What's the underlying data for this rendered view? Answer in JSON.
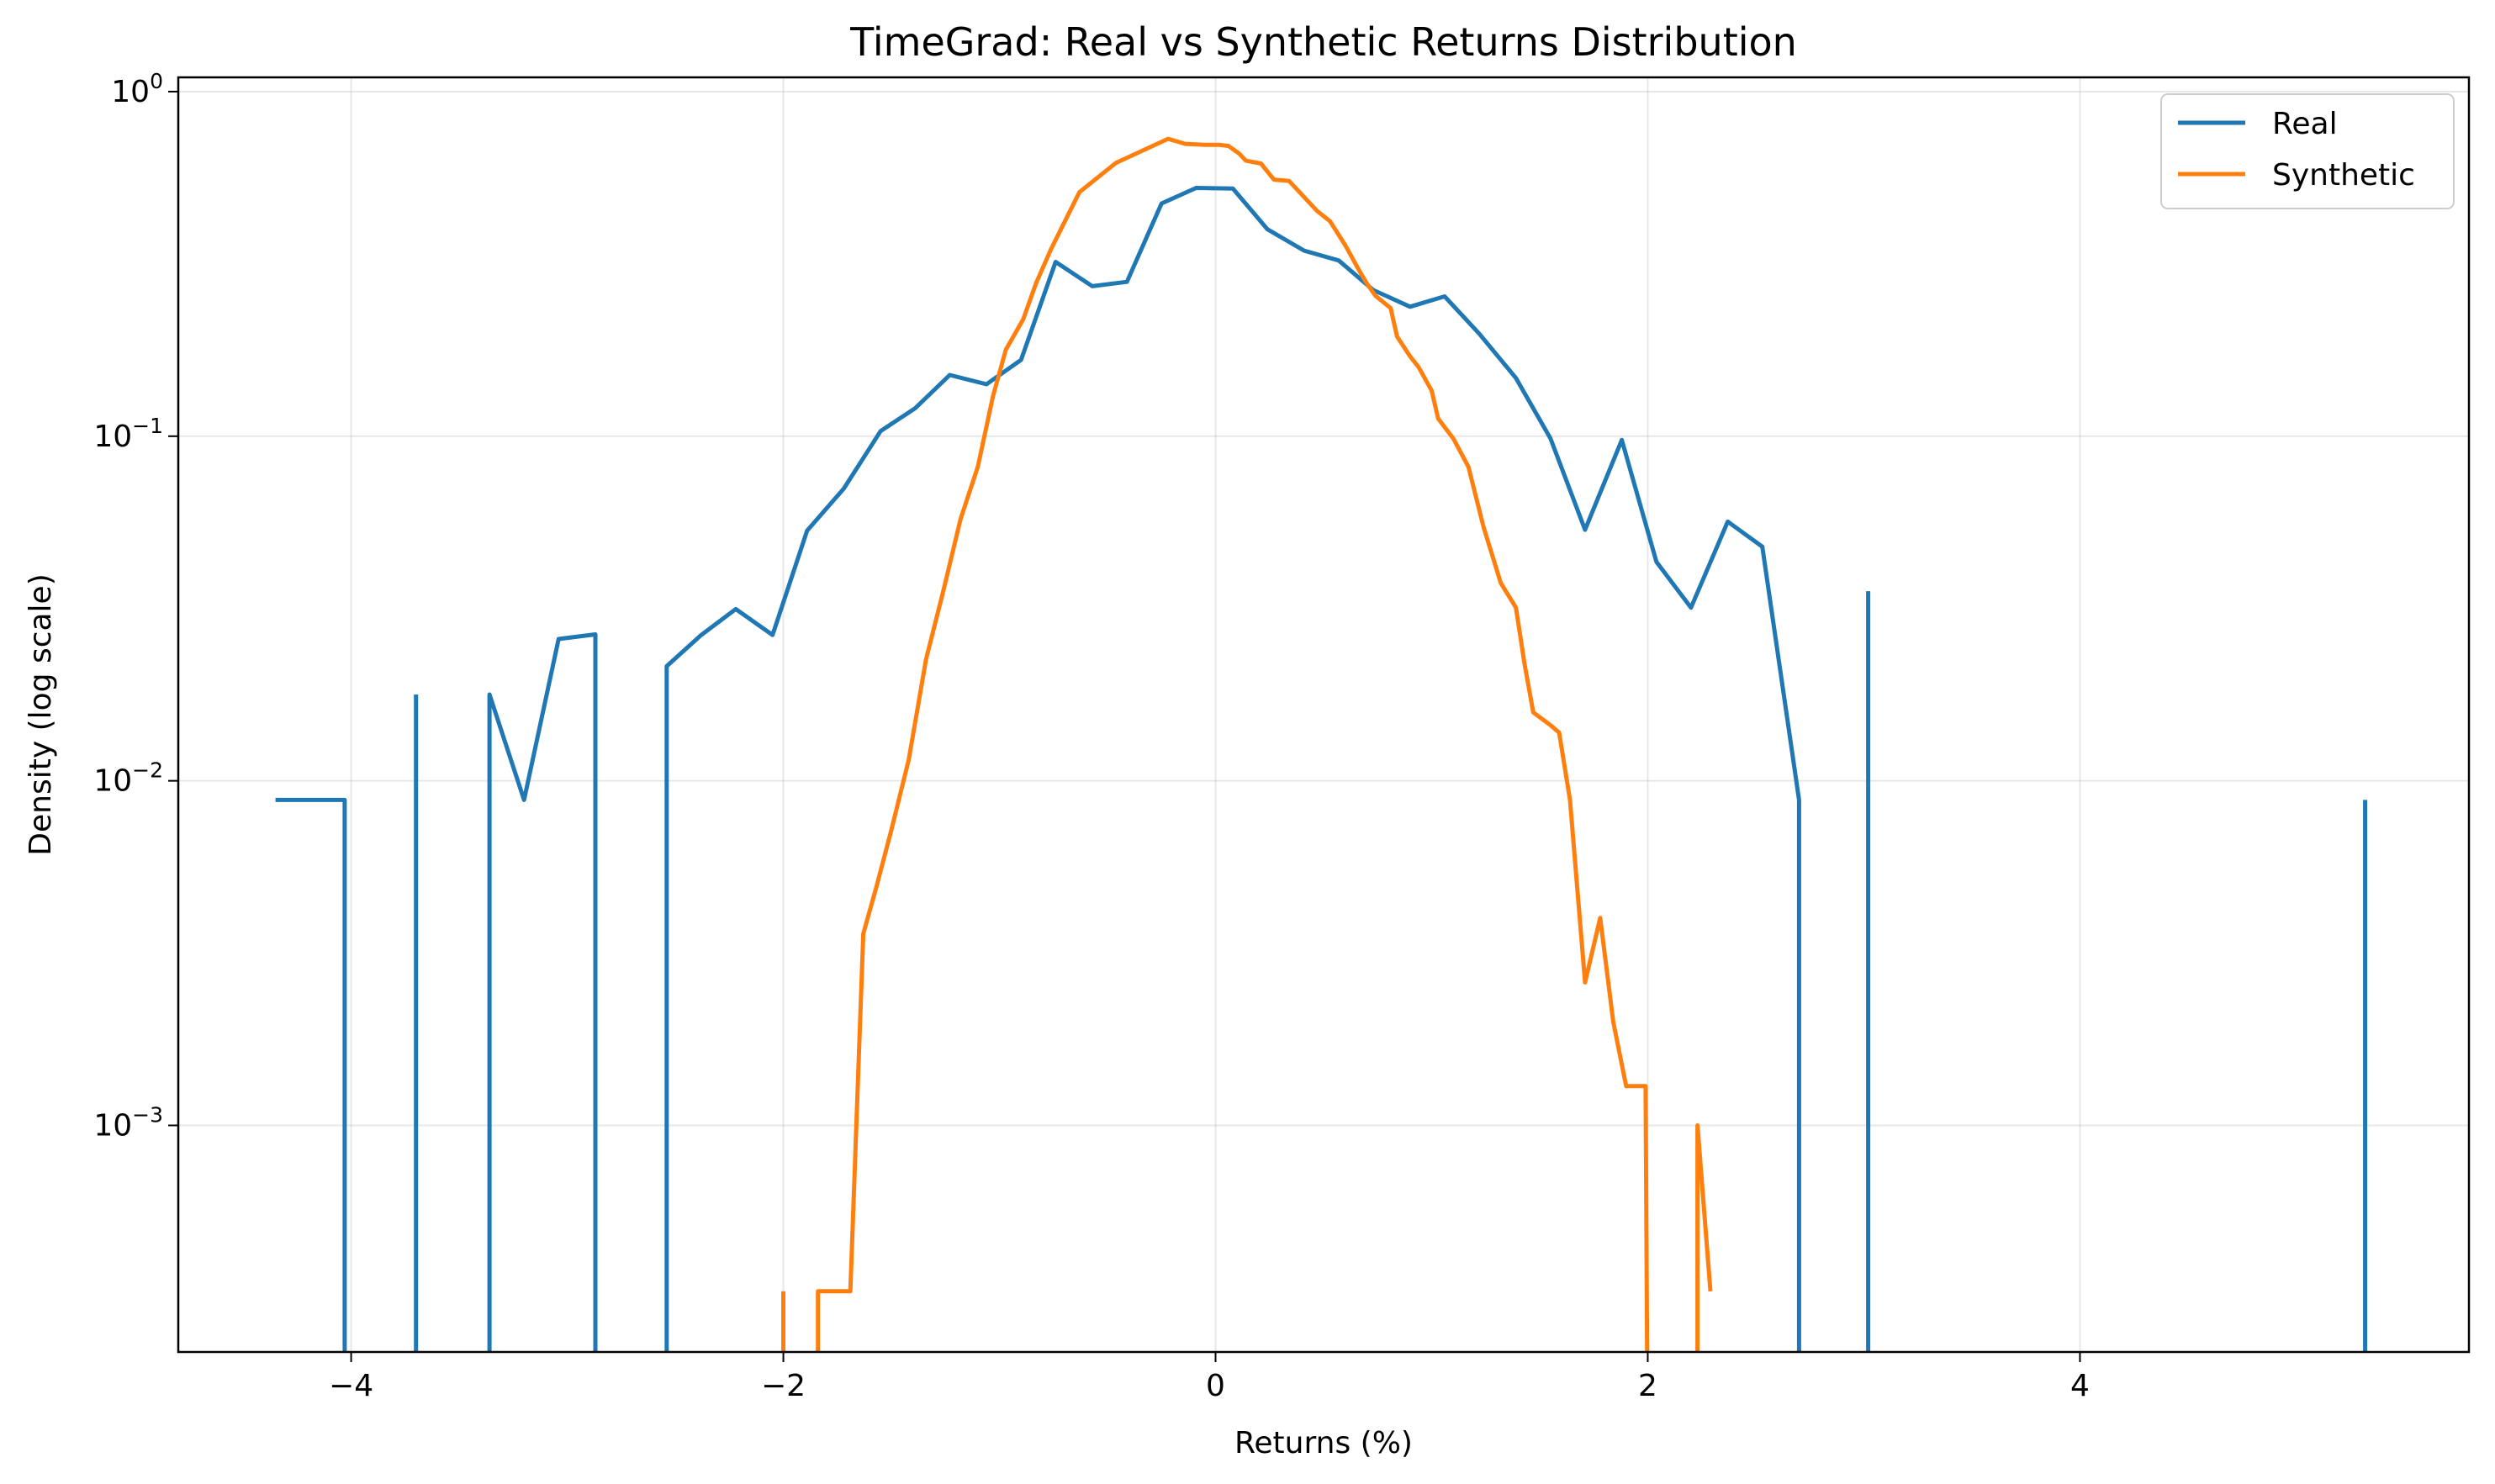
{
  "chart_data": {
    "type": "line",
    "title": "TimeGrad: Real vs Synthetic Returns Distribution",
    "xlabel": "Returns (%)",
    "ylabel": "Density (log scale)",
    "xlim": [
      -4.8,
      5.8
    ],
    "ylim": [
      0.00022,
      1.1
    ],
    "yscale": "log",
    "grid": true,
    "legend_position": "top-right",
    "x_ticks": [
      {
        "value": -4,
        "label": "−4"
      },
      {
        "value": -2,
        "label": "−2"
      },
      {
        "value": 0,
        "label": "0"
      },
      {
        "value": 2,
        "label": "2"
      },
      {
        "value": 4,
        "label": "4"
      }
    ],
    "y_ticks": [
      {
        "value": 0.001,
        "base": "10",
        "exp": "−3"
      },
      {
        "value": 0.01,
        "base": "10",
        "exp": "−2"
      },
      {
        "value": 0.1,
        "base": "10",
        "exp": "−1"
      },
      {
        "value": 1,
        "base": "10",
        "exp": "0"
      }
    ],
    "series": [
      {
        "name": "Real",
        "color": "#1f77b4",
        "segments": [
          [
            [
              -4.35,
              0.0088
            ],
            [
              -4.03,
              0.0088
            ],
            [
              -4.03,
              0.0001
            ]
          ],
          [
            [
              -3.7,
              0.0001
            ],
            [
              -3.7,
              0.0178
            ]
          ],
          [
            [
              -3.36,
              0.0001
            ],
            [
              -3.36,
              0.0178
            ],
            [
              -3.2,
              0.0088
            ],
            [
              -3.04,
              0.0258
            ],
            [
              -2.87,
              0.0266
            ],
            [
              -2.87,
              0.0001
            ]
          ],
          [
            [
              -2.54,
              0.0001
            ],
            [
              -2.54,
              0.0215
            ],
            [
              -2.38,
              0.0265
            ],
            [
              -2.22,
              0.0315
            ],
            [
              -2.05,
              0.0265
            ],
            [
              -1.89,
              0.0532
            ],
            [
              -1.72,
              0.0705
            ],
            [
              -1.55,
              0.1035
            ],
            [
              -1.39,
              0.1205
            ],
            [
              -1.23,
              0.1505
            ],
            [
              -1.06,
              0.1415
            ],
            [
              -0.9,
              0.1665
            ],
            [
              -0.74,
              0.3205
            ],
            [
              -0.57,
              0.2725
            ],
            [
              -0.41,
              0.2805
            ],
            [
              -0.25,
              0.4735
            ],
            [
              -0.09,
              0.5255
            ],
            [
              0.08,
              0.5235
            ],
            [
              0.24,
              0.3985
            ],
            [
              0.41,
              0.3455
            ],
            [
              0.57,
              0.3235
            ],
            [
              0.73,
              0.2655
            ],
            [
              0.9,
              0.2375
            ],
            [
              1.06,
              0.2545
            ],
            [
              1.22,
              0.1985
            ],
            [
              1.39,
              0.1475
            ],
            [
              1.55,
              0.0985
            ],
            [
              1.71,
              0.0535
            ],
            [
              1.88,
              0.0975
            ],
            [
              2.04,
              0.0432
            ],
            [
              2.2,
              0.0318
            ],
            [
              2.37,
              0.0565
            ],
            [
              2.53,
              0.0478
            ],
            [
              2.7,
              0.0088
            ],
            [
              2.7,
              0.0001
            ]
          ],
          [
            [
              3.02,
              0.0001
            ],
            [
              3.02,
              0.0355
            ]
          ],
          [
            [
              5.32,
              0.0001
            ],
            [
              5.32,
              0.0088
            ]
          ]
        ]
      },
      {
        "name": "Synthetic",
        "color": "#ff7f0e",
        "segments": [
          [
            [
              -2.0,
              0.0001
            ],
            [
              -2.0,
              0.00033
            ]
          ],
          [
            [
              -1.84,
              0.0001
            ],
            [
              -1.84,
              0.00033
            ],
            [
              -1.69,
              0.00033
            ],
            [
              -1.63,
              0.0036
            ],
            [
              -1.57,
              0.0049
            ],
            [
              -1.5,
              0.0072
            ],
            [
              -1.42,
              0.0115
            ],
            [
              -1.34,
              0.0225
            ],
            [
              -1.26,
              0.0355
            ],
            [
              -1.18,
              0.0575
            ],
            [
              -1.1,
              0.0815
            ],
            [
              -1.03,
              0.1305
            ],
            [
              -0.97,
              0.1785
            ],
            [
              -0.89,
              0.2185
            ],
            [
              -0.83,
              0.2785
            ],
            [
              -0.76,
              0.3505
            ],
            [
              -0.63,
              0.5105
            ],
            [
              -0.46,
              0.6215
            ],
            [
              -0.22,
              0.7295
            ],
            [
              -0.14,
              0.7055
            ],
            [
              -0.05,
              0.7005
            ],
            [
              0.02,
              0.7005
            ],
            [
              0.06,
              0.6955
            ],
            [
              0.11,
              0.6605
            ],
            [
              0.14,
              0.6305
            ],
            [
              0.21,
              0.6185
            ],
            [
              0.27,
              0.5555
            ],
            [
              0.34,
              0.5505
            ],
            [
              0.47,
              0.4505
            ],
            [
              0.53,
              0.4205
            ],
            [
              0.6,
              0.3585
            ],
            [
              0.67,
              0.2985
            ],
            [
              0.7,
              0.2775
            ],
            [
              0.74,
              0.2555
            ],
            [
              0.81,
              0.2355
            ],
            [
              0.84,
              0.1945
            ],
            [
              0.9,
              0.1705
            ],
            [
              0.94,
              0.1585
            ],
            [
              1.0,
              0.1355
            ],
            [
              1.03,
              0.1125
            ],
            [
              1.1,
              0.0985
            ],
            [
              1.17,
              0.0815
            ],
            [
              1.24,
              0.0545
            ],
            [
              1.32,
              0.0375
            ],
            [
              1.39,
              0.0318
            ],
            [
              1.43,
              0.0218
            ],
            [
              1.47,
              0.0158
            ],
            [
              1.55,
              0.0145
            ],
            [
              1.59,
              0.0138
            ],
            [
              1.64,
              0.0088
            ],
            [
              1.71,
              0.0026
            ],
            [
              1.78,
              0.004
            ],
            [
              1.84,
              0.002
            ],
            [
              1.9,
              0.0013
            ],
            [
              1.99,
              0.0013
            ],
            [
              2.0,
              0.0001
            ]
          ],
          [
            [
              2.23,
              0.0001
            ],
            [
              2.23,
              0.001
            ],
            [
              2.29,
              0.00033
            ]
          ]
        ]
      }
    ]
  }
}
